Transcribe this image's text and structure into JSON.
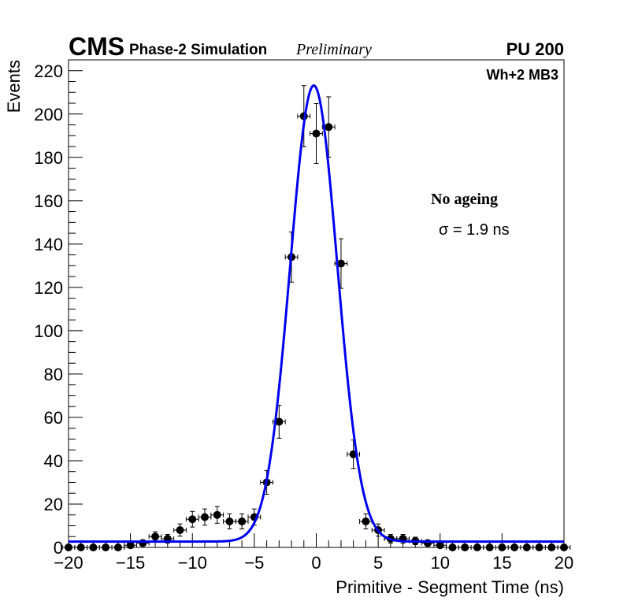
{
  "chart_data": {
    "type": "scatter",
    "title_main": "CMS",
    "title_sub": "Phase-2 Simulation",
    "title_status": "Preliminary",
    "pileup_label": "PU 200",
    "station_label": "Wh+2 MB3",
    "annotation_condition": "No ageing",
    "annotation_sigma": "σ = 1.9 ns",
    "xlabel": "Primitive - Segment Time (ns)",
    "ylabel": "Events",
    "xlim": [
      -20,
      20
    ],
    "ylim": [
      0,
      225
    ],
    "x_ticks": [
      -20,
      -15,
      -10,
      -5,
      0,
      5,
      10,
      15,
      20
    ],
    "x_tick_labels": [
      "−20",
      "−15",
      "−10",
      "−5",
      "0",
      "5",
      "10",
      "15",
      "20"
    ],
    "y_ticks": [
      0,
      20,
      40,
      60,
      80,
      100,
      120,
      140,
      160,
      180,
      200,
      220
    ],
    "y_tick_labels": [
      "0",
      "20",
      "40",
      "60",
      "80",
      "100",
      "120",
      "140",
      "160",
      "180",
      "200",
      "220"
    ],
    "bin_width": 1,
    "series": [
      {
        "name": "Simulation",
        "x": [
          -20,
          -19,
          -18,
          -17,
          -16,
          -15,
          -14,
          -13,
          -12,
          -11,
          -10,
          -9,
          -8,
          -7,
          -6,
          -5,
          -4,
          -3,
          -2,
          -1,
          0,
          1,
          2,
          3,
          4,
          5,
          6,
          7,
          8,
          9,
          10,
          11,
          12,
          13,
          14,
          15,
          16,
          17,
          18,
          19,
          20
        ],
        "y": [
          0,
          0,
          0,
          0,
          0,
          1,
          2,
          5,
          4,
          8,
          13,
          14,
          15,
          12,
          12,
          14,
          30,
          58,
          134,
          199,
          191,
          194,
          131,
          43,
          12,
          8,
          4,
          4,
          3,
          2,
          1,
          0,
          0,
          0,
          0,
          0,
          0,
          0,
          0,
          0,
          0
        ]
      }
    ],
    "fit": {
      "name": "Gaussian fit",
      "color": "#0000ee",
      "amplitude": 210.5,
      "mean": -0.2,
      "sigma": 1.9,
      "constant": 2.7
    },
    "marker_color": "#000000"
  }
}
